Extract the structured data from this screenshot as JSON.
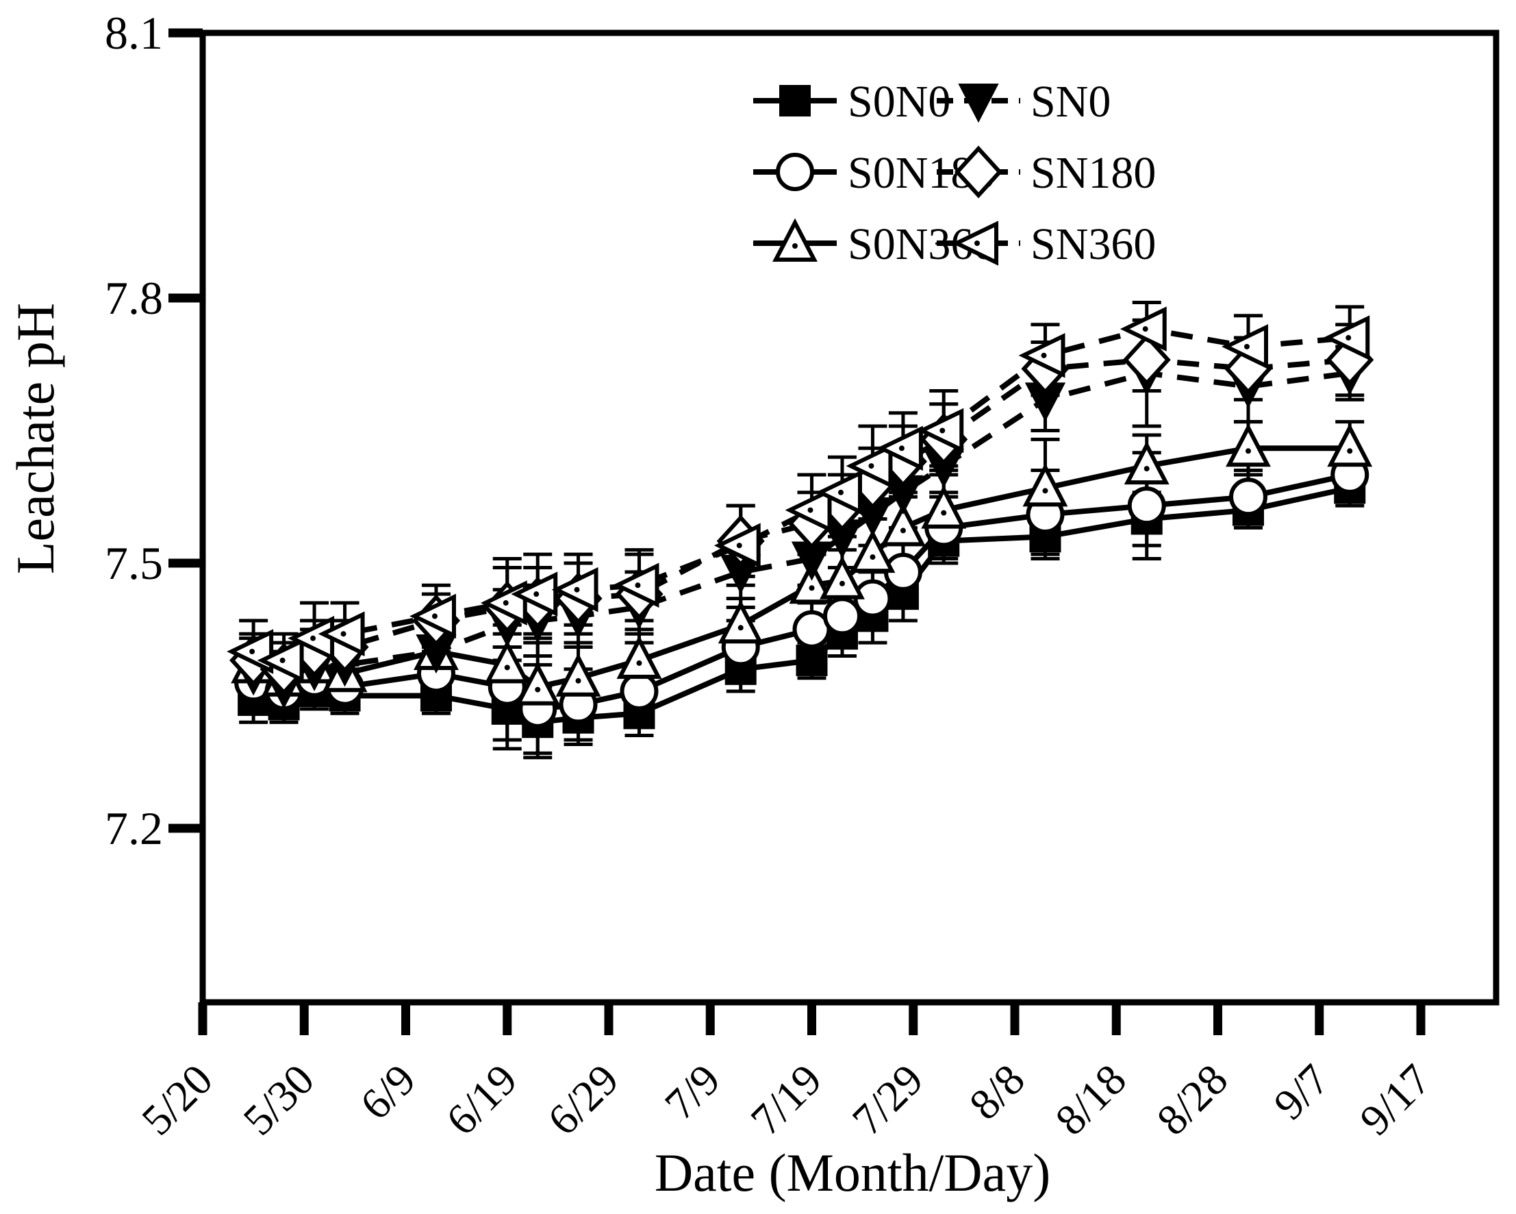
{
  "figure": {
    "background_color": "#ffffff",
    "ink_color": "#000000"
  },
  "chart_data": {
    "type": "line",
    "title": "",
    "xlabel": "Date (Month/Day)",
    "ylabel": "Leachate pH",
    "grid": false,
    "legend_position": "top-right-inside",
    "ylim": [
      7.0,
      8.1
    ],
    "y_ticks": [
      8.1,
      7.8,
      7.5,
      7.2
    ],
    "y_tick_labels": [
      "8.1",
      "7.8",
      "7.5",
      "7.2"
    ],
    "x_tick_labels": [
      "5/20",
      "5/30",
      "6/9",
      "6/19",
      "6/29",
      "7/9",
      "7/19",
      "7/29",
      "8/8",
      "8/18",
      "8/28",
      "9/7",
      "9/17"
    ],
    "x_tick_days": [
      0,
      10,
      20,
      30,
      40,
      50,
      60,
      70,
      80,
      90,
      100,
      110,
      120
    ],
    "x_dates": [
      "5/25",
      "5/28",
      "5/31",
      "6/3",
      "6/12",
      "6/19",
      "6/22",
      "6/26",
      "7/2",
      "7/12",
      "7/19",
      "7/22",
      "7/25",
      "7/28",
      "8/1",
      "8/11",
      "8/21",
      "8/31",
      "9/10"
    ],
    "x_days": [
      5,
      8,
      11,
      14,
      23,
      30,
      33,
      37,
      43,
      53,
      60,
      63,
      66,
      69,
      73,
      83,
      93,
      103,
      113
    ],
    "series": [
      {
        "name": "S0N0",
        "line": "solid",
        "marker": "square-filled",
        "values": [
          7.345,
          7.34,
          7.355,
          7.35,
          7.35,
          7.335,
          7.32,
          7.325,
          7.33,
          7.38,
          7.39,
          7.42,
          7.44,
          7.465,
          7.525,
          7.53,
          7.55,
          7.56,
          7.585
        ],
        "errors": [
          0.025,
          0.02,
          0.02,
          0.02,
          0.02,
          0.045,
          0.04,
          0.03,
          0.025,
          0.025,
          0.02,
          0.025,
          0.03,
          0.03,
          0.02,
          0.02,
          0.03,
          0.02,
          0.02
        ]
      },
      {
        "name": "S0N180",
        "line": "solid",
        "marker": "circle-open",
        "values": [
          7.365,
          7.355,
          7.37,
          7.36,
          7.375,
          7.36,
          7.335,
          7.34,
          7.355,
          7.405,
          7.425,
          7.44,
          7.46,
          7.49,
          7.54,
          7.555,
          7.565,
          7.575,
          7.6
        ],
        "errors": [
          0.03,
          0.025,
          0.025,
          0.02,
          0.025,
          0.06,
          0.05,
          0.04,
          0.03,
          0.03,
          0.03,
          0.03,
          0.03,
          0.035,
          0.04,
          0.05,
          0.06,
          0.03,
          0.025
        ]
      },
      {
        "name": "S0N360",
        "line": "solid",
        "marker": "triangle-up-open",
        "values": [
          7.385,
          7.37,
          7.385,
          7.375,
          7.4,
          7.385,
          7.36,
          7.37,
          7.39,
          7.43,
          7.475,
          7.48,
          7.51,
          7.54,
          7.56,
          7.585,
          7.61,
          7.63,
          7.63
        ],
        "errors": [
          0.03,
          0.03,
          0.04,
          0.03,
          0.035,
          0.045,
          0.05,
          0.04,
          0.035,
          0.03,
          0.04,
          0.035,
          0.04,
          0.04,
          0.05,
          0.055,
          0.035,
          0.03,
          0.03
        ]
      },
      {
        "name": "SN0",
        "line": "dashed",
        "marker": "triangle-down-filled",
        "values": [
          7.375,
          7.36,
          7.38,
          7.385,
          7.4,
          7.43,
          7.435,
          7.44,
          7.45,
          7.49,
          7.505,
          7.53,
          7.555,
          7.58,
          7.61,
          7.685,
          7.715,
          7.7,
          7.715
        ],
        "errors": [
          0.03,
          0.03,
          0.035,
          0.03,
          0.03,
          0.04,
          0.04,
          0.035,
          0.04,
          0.04,
          0.03,
          0.035,
          0.035,
          0.04,
          0.035,
          0.035,
          0.06,
          0.04,
          0.03
        ]
      },
      {
        "name": "SN180",
        "line": "dashed",
        "marker": "diamond-open",
        "values": [
          7.39,
          7.38,
          7.4,
          7.405,
          7.435,
          7.45,
          7.455,
          7.46,
          7.465,
          7.525,
          7.545,
          7.565,
          7.59,
          7.615,
          7.64,
          7.72,
          7.73,
          7.72,
          7.73
        ],
        "errors": [
          0.03,
          0.03,
          0.035,
          0.03,
          0.03,
          0.045,
          0.04,
          0.04,
          0.045,
          0.04,
          0.035,
          0.035,
          0.04,
          0.04,
          0.04,
          0.03,
          0.035,
          0.035,
          0.04
        ]
      },
      {
        "name": "SN360",
        "line": "dashed",
        "marker": "triangle-left-open",
        "values": [
          7.4,
          7.39,
          7.415,
          7.42,
          7.44,
          7.455,
          7.465,
          7.47,
          7.475,
          7.52,
          7.56,
          7.58,
          7.61,
          7.63,
          7.65,
          7.735,
          7.765,
          7.745,
          7.755
        ],
        "errors": [
          0.035,
          0.03,
          0.04,
          0.035,
          0.035,
          0.05,
          0.045,
          0.04,
          0.04,
          0.045,
          0.04,
          0.04,
          0.045,
          0.04,
          0.045,
          0.035,
          0.03,
          0.035,
          0.035
        ]
      }
    ],
    "legend": {
      "columns": [
        [
          "S0N0",
          "S0N180",
          "S0N360"
        ],
        [
          "SN0",
          "SN180",
          "SN360"
        ]
      ]
    }
  }
}
